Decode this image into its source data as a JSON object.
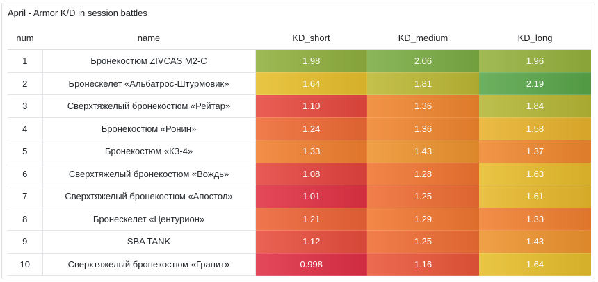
{
  "panel": {
    "title": "April - Armor K/D in session battles"
  },
  "table": {
    "columns": [
      "num",
      "name",
      "KD_short",
      "KD_medium",
      "KD_long"
    ],
    "rows": [
      {
        "num": "1",
        "name": "Бронекостюм ZIVCAS M2-C",
        "kd_short": "1.98",
        "kd_medium": "2.06",
        "kd_long": "1.96"
      },
      {
        "num": "2",
        "name": "Бронескелет «Альбатрос-Штурмовик»",
        "kd_short": "1.64",
        "kd_medium": "1.81",
        "kd_long": "2.19"
      },
      {
        "num": "3",
        "name": "Сверхтяжелый бронекостюм «Рейтар»",
        "kd_short": "1.10",
        "kd_medium": "1.36",
        "kd_long": "1.84"
      },
      {
        "num": "4",
        "name": "Бронекостюм «Ронин»",
        "kd_short": "1.24",
        "kd_medium": "1.36",
        "kd_long": "1.58"
      },
      {
        "num": "5",
        "name": "Бронекостюм «КЗ-4»",
        "kd_short": "1.33",
        "kd_medium": "1.43",
        "kd_long": "1.37"
      },
      {
        "num": "6",
        "name": "Сверхтяжелый бронекостюм «Вождь»",
        "kd_short": "1.08",
        "kd_medium": "1.28",
        "kd_long": "1.63"
      },
      {
        "num": "7",
        "name": "Сверхтяжелый бронекостюм «Апостол»",
        "kd_short": "1.01",
        "kd_medium": "1.25",
        "kd_long": "1.61"
      },
      {
        "num": "8",
        "name": "Бронескелет «Центурион»",
        "kd_short": "1.21",
        "kd_medium": "1.29",
        "kd_long": "1.33"
      },
      {
        "num": "9",
        "name": "SBA TANK",
        "kd_short": "1.12",
        "kd_medium": "1.25",
        "kd_long": "1.43"
      },
      {
        "num": "10",
        "name": "Сверхтяжелый бронекостюм «Гранит»",
        "kd_short": "0.998",
        "kd_medium": "1.16",
        "kd_long": "1.64"
      }
    ]
  },
  "heat_colors": {
    "red": "#e02f44",
    "orange": "#f2792f",
    "yellow": "#e6c02b",
    "green": "#56a64b"
  }
}
